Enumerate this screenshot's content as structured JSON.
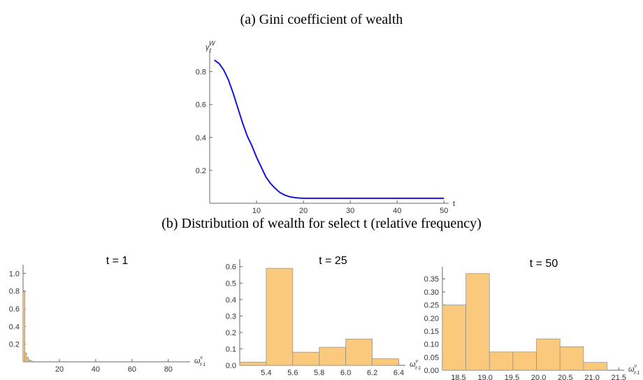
{
  "subfigure_caption": "(b) Distribution of wealth for select t (relative frequency)",
  "chart_data": [
    {
      "type": "line",
      "title": "(a) Gini coefficient of wealth",
      "x_label": "t",
      "y_label": "γ",
      "y_label_sub": "t",
      "y_label_sup": "W",
      "x": [
        1,
        2,
        3,
        4,
        5,
        6,
        7,
        8,
        9,
        10,
        11,
        12,
        13,
        14,
        15,
        16,
        17,
        18,
        19,
        20,
        21,
        22,
        23,
        24,
        25,
        26,
        27,
        28,
        29,
        30,
        31,
        32,
        33,
        34,
        35,
        36,
        37,
        38,
        39,
        40,
        41,
        42,
        43,
        44,
        45,
        46,
        47,
        48,
        49,
        50
      ],
      "series": [
        {
          "name": "Gini",
          "color": "#1414dc",
          "values": [
            0.87,
            0.85,
            0.81,
            0.75,
            0.67,
            0.58,
            0.49,
            0.41,
            0.35,
            0.28,
            0.22,
            0.16,
            0.12,
            0.09,
            0.065,
            0.05,
            0.04,
            0.035,
            0.032,
            0.03,
            0.03,
            0.03,
            0.03,
            0.03,
            0.03,
            0.03,
            0.03,
            0.03,
            0.03,
            0.03,
            0.03,
            0.03,
            0.03,
            0.03,
            0.03,
            0.03,
            0.03,
            0.03,
            0.03,
            0.03,
            0.03,
            0.03,
            0.03,
            0.03,
            0.03,
            0.03,
            0.03,
            0.03,
            0.03,
            0.03
          ]
        }
      ],
      "xlim": [
        0,
        51
      ],
      "xticks": [
        10,
        20,
        30,
        40,
        50
      ],
      "ylim": [
        0,
        0.9
      ],
      "yticks": [
        0.2,
        0.4,
        0.6,
        0.8
      ]
    },
    {
      "type": "histogram",
      "title": "t = 1",
      "x_label": "ω",
      "x_label_sub": "t-1",
      "x_label_sup": "v",
      "color": "#fbc97b",
      "bins": [
        0,
        1,
        2,
        3,
        4,
        5
      ],
      "values": [
        0.79,
        0.1,
        0.05,
        0.02,
        0.01
      ],
      "xlim": [
        0,
        92
      ],
      "xticks": [
        20,
        40,
        60,
        80
      ],
      "ylim": [
        0,
        1.05
      ],
      "yticks": [
        0.2,
        0.4,
        0.6,
        0.8,
        {
          "value": 1,
          "label": "1.0"
        }
      ]
    },
    {
      "type": "histogram",
      "title": "t = 25",
      "x_label": "ω",
      "x_label_sub": "t-1",
      "x_label_sup": "v",
      "color": "#fbc97b",
      "bins": [
        5.2,
        5.4,
        5.6,
        5.8,
        6.0,
        6.2,
        6.4
      ],
      "values": [
        0.02,
        0.59,
        0.08,
        0.11,
        0.16,
        0.04
      ],
      "xlim": [
        5.2,
        6.45
      ],
      "xticks": [
        5.4,
        5.6,
        5.8,
        {
          "value": 6,
          "label": "6.0"
        },
        6.2,
        6.4
      ],
      "ylim": [
        0,
        0.62
      ],
      "yticks": [
        {
          "value": 0,
          "label": "0.0"
        },
        0.1,
        0.2,
        0.3,
        0.4,
        0.5,
        0.6
      ]
    },
    {
      "type": "histogram",
      "title": "t = 50",
      "x_label": "ω",
      "x_label_sub": "t-1",
      "x_label_sup": "v",
      "color": "#fbc97b",
      "bins": [
        18.2,
        18.64,
        19.08,
        19.52,
        19.96,
        20.4,
        20.84,
        21.28
      ],
      "values": [
        0.25,
        0.37,
        0.07,
        0.07,
        0.12,
        0.09,
        0.03
      ],
      "xlim": [
        18.2,
        21.6
      ],
      "xticks": [
        18.5,
        {
          "value": 19,
          "label": "19.0"
        },
        19.5,
        {
          "value": 20,
          "label": "20.0"
        },
        20.5,
        {
          "value": 21,
          "label": "21.0"
        },
        21.5
      ],
      "ylim": [
        0,
        0.38
      ],
      "yticks": [
        {
          "value": 0,
          "label": "0.00"
        },
        0.05,
        {
          "value": 0.1,
          "label": "0.10"
        },
        0.15,
        {
          "value": 0.2,
          "label": "0.20"
        },
        0.25,
        {
          "value": 0.3,
          "label": "0.30"
        },
        0.35
      ]
    }
  ]
}
